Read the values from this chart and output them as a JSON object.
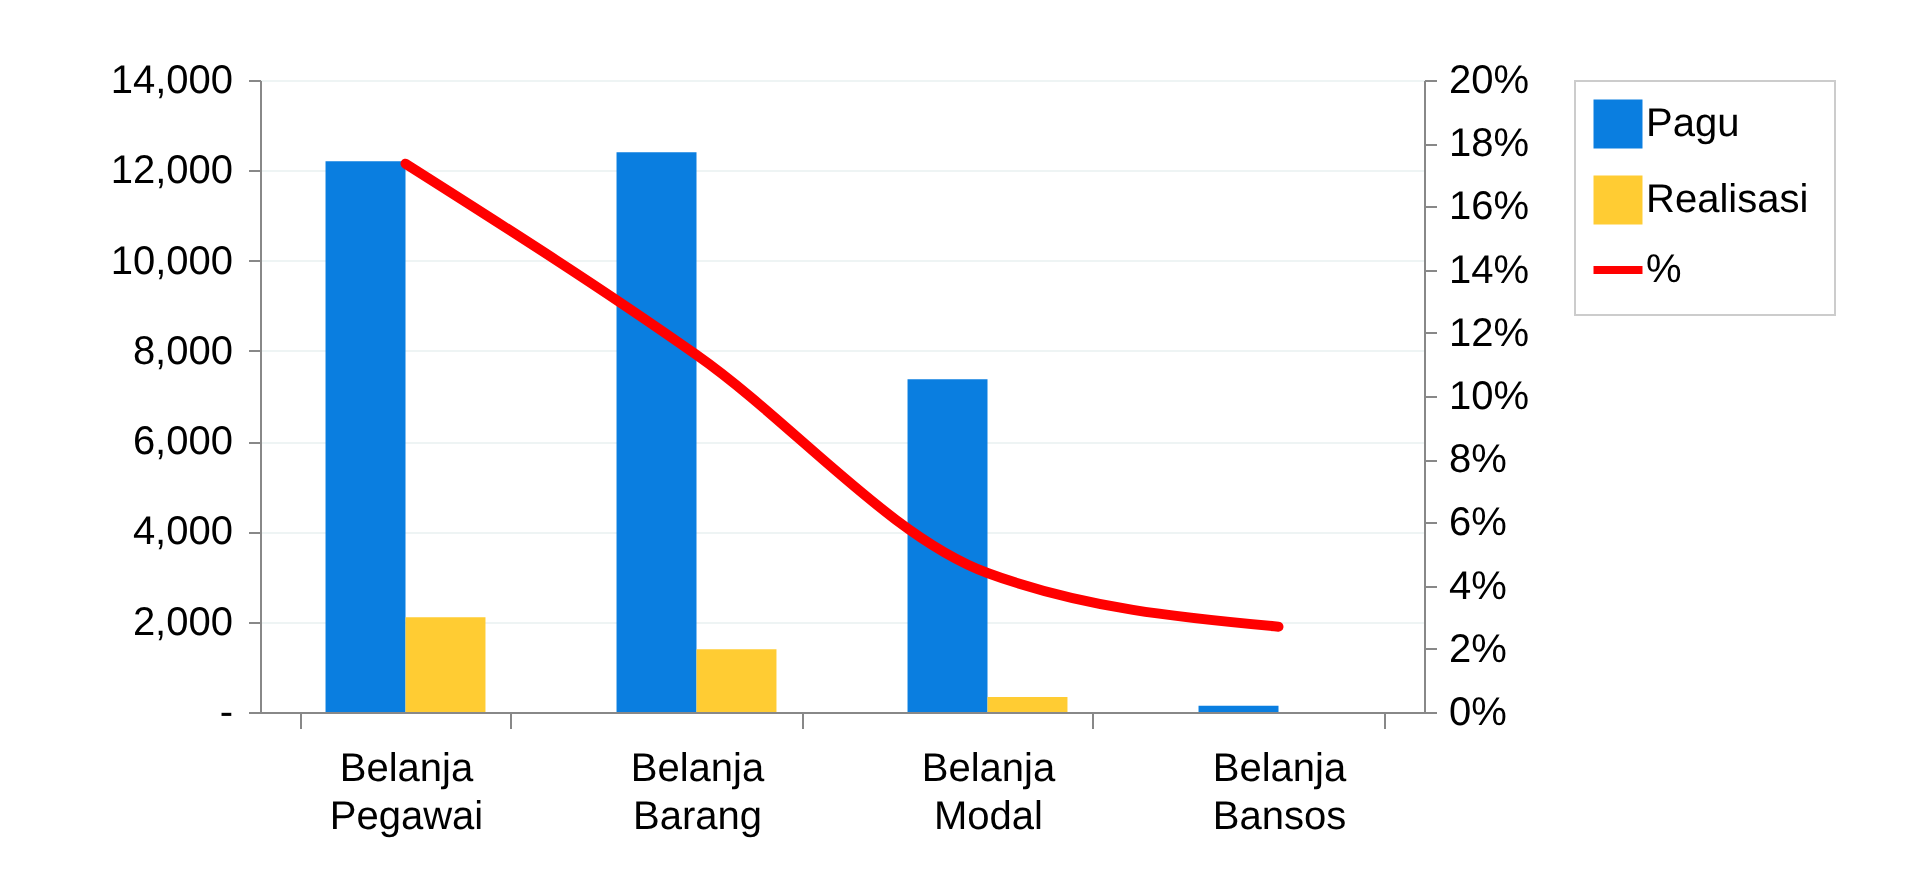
{
  "chart_data": {
    "type": "bar",
    "categories": [
      "Belanja Pegawai",
      "Belanja Barang",
      "Belanja Modal",
      "Belanja Bansos"
    ],
    "series": [
      {
        "name": "Pagu",
        "color": "#0a7ee0",
        "values": [
          12200,
          12400,
          7370,
          140
        ]
      },
      {
        "name": "Realisasi",
        "color": "#ffcc33",
        "values": [
          2100,
          1390,
          330,
          0
        ]
      },
      {
        "name": "%",
        "type": "line",
        "axis": "y2",
        "color": "#ff0000",
        "values": [
          17.35,
          11.3,
          4.4,
          2.7
        ]
      }
    ],
    "ylim": [
      0,
      14000
    ],
    "yticks": [
      {
        "value": 0,
        "label": "-"
      },
      {
        "value": 2000,
        "label": "2,000"
      },
      {
        "value": 4000,
        "label": "4,000"
      },
      {
        "value": 6000,
        "label": "6,000"
      },
      {
        "value": 8000,
        "label": "8,000"
      },
      {
        "value": 10000,
        "label": "10,000"
      },
      {
        "value": 12000,
        "label": "12,000"
      },
      {
        "value": 14000,
        "label": "14,000"
      }
    ],
    "y2lim": [
      0,
      20
    ],
    "y2ticks": [
      {
        "value": 0,
        "label": "0%"
      },
      {
        "value": 2,
        "label": "2%"
      },
      {
        "value": 4,
        "label": "4%"
      },
      {
        "value": 6,
        "label": "6%"
      },
      {
        "value": 8,
        "label": "8%"
      },
      {
        "value": 10,
        "label": "10%"
      },
      {
        "value": 12,
        "label": "12%"
      },
      {
        "value": 14,
        "label": "14%"
      },
      {
        "value": 16,
        "label": "16%"
      },
      {
        "value": 18,
        "label": "18%"
      },
      {
        "value": 20,
        "label": "20%"
      }
    ],
    "grid": "y",
    "legend": "right",
    "line_style": "solid"
  }
}
